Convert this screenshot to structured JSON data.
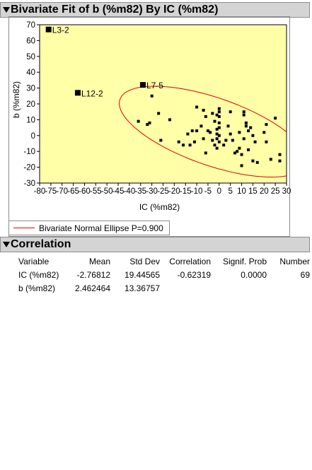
{
  "bivariate_panel": {
    "title": "Bivariate Fit of b (%m82) By IC (%m82)"
  },
  "legend": {
    "label": "Bivariate Normal Ellipse P=0.900",
    "color": "#e00000"
  },
  "correlation_panel": {
    "title": "Correlation",
    "headers": [
      "Variable",
      "Mean",
      "Std Dev",
      "Correlation",
      "Signif. Prob",
      "Number"
    ],
    "rows": [
      [
        "IC (%m82)",
        "-2.76812",
        "19.44565",
        "-0.62319",
        "0.0000",
        "69"
      ],
      [
        "b (%m82)",
        "2.462464",
        "13.36757",
        "",
        "",
        ""
      ]
    ]
  },
  "colors": {
    "plot_background": "#ffffa8",
    "header_background": "#d4d4d4",
    "ellipse": "#e00000",
    "marker": "#000000"
  },
  "chart_data": {
    "type": "scatter",
    "xlabel": "IC (%m82)",
    "ylabel": "b (%m82)",
    "xlim": [
      -80,
      30
    ],
    "ylim": [
      -30,
      70
    ],
    "xticks": [
      -80,
      -75,
      -70,
      -65,
      -60,
      -55,
      -50,
      -45,
      -40,
      -35,
      -30,
      -25,
      -20,
      -15,
      -10,
      -5,
      0,
      5,
      10,
      15,
      20,
      25,
      30
    ],
    "yticks": [
      -30,
      -20,
      -10,
      0,
      10,
      20,
      30,
      40,
      50,
      60,
      70
    ],
    "tick_labels_x": [
      "-80",
      "-75",
      "-70",
      "-65",
      "-60",
      "-55",
      "-50",
      "-45",
      "-40",
      "-35",
      "-30",
      "-25",
      "-20",
      "-15",
      "-10",
      "-5",
      "0",
      "5",
      "10",
      "15",
      "20",
      "25",
      "30"
    ],
    "tick_labels_y": [
      "-30",
      "-20",
      "-10",
      "0",
      "10",
      "20",
      "30",
      "40",
      "50",
      "60",
      "70"
    ],
    "grid": false,
    "labeled_points": [
      {
        "label": "L3-2",
        "x": -76,
        "y": 67
      },
      {
        "label": "L12-2",
        "x": -63,
        "y": 27
      },
      {
        "label": "L7-5",
        "x": -34,
        "y": 32
      }
    ],
    "points": [
      [
        -36,
        9
      ],
      [
        -32,
        7
      ],
      [
        -31,
        8
      ],
      [
        -30,
        25
      ],
      [
        -27,
        14
      ],
      [
        -26,
        -3
      ],
      [
        -22,
        10
      ],
      [
        -18,
        -4
      ],
      [
        -16,
        -6
      ],
      [
        -14,
        1
      ],
      [
        -13,
        -6
      ],
      [
        -12,
        3
      ],
      [
        -11,
        -4
      ],
      [
        -10,
        18
      ],
      [
        -10,
        3
      ],
      [
        -8,
        6
      ],
      [
        -7,
        -2
      ],
      [
        -7,
        16
      ],
      [
        -6,
        12
      ],
      [
        -6,
        -11
      ],
      [
        -5,
        3
      ],
      [
        -4,
        2
      ],
      [
        -3,
        -3
      ],
      [
        -3,
        14
      ],
      [
        -2,
        -6
      ],
      [
        -2,
        9
      ],
      [
        -1,
        4
      ],
      [
        -1,
        1
      ],
      [
        -1,
        -2
      ],
      [
        -1,
        -8
      ],
      [
        -1,
        13
      ],
      [
        0,
        17
      ],
      [
        0,
        15
      ],
      [
        0,
        12
      ],
      [
        0,
        8
      ],
      [
        0,
        5
      ],
      [
        0,
        0
      ],
      [
        0,
        -4
      ],
      [
        2,
        -6
      ],
      [
        3,
        -3
      ],
      [
        4,
        6
      ],
      [
        5,
        15
      ],
      [
        5,
        1
      ],
      [
        6,
        -3
      ],
      [
        7,
        -11
      ],
      [
        8,
        -10
      ],
      [
        9,
        2
      ],
      [
        9,
        -8
      ],
      [
        10,
        -12
      ],
      [
        10,
        -19
      ],
      [
        11,
        15
      ],
      [
        11,
        13
      ],
      [
        11,
        -2
      ],
      [
        12,
        8
      ],
      [
        12,
        6
      ],
      [
        13,
        3
      ],
      [
        13,
        -9
      ],
      [
        14,
        5
      ],
      [
        15,
        0
      ],
      [
        15,
        -16
      ],
      [
        16,
        -4
      ],
      [
        17,
        -17
      ],
      [
        20,
        2
      ],
      [
        21,
        -4
      ],
      [
        21,
        7
      ],
      [
        23,
        -15
      ],
      [
        25,
        11
      ],
      [
        27,
        -12
      ],
      [
        27,
        -16
      ]
    ],
    "ellipse": {
      "probability": 0.9,
      "mean_x": -2.76812,
      "mean_y": 2.462464,
      "sd_x": 19.44565,
      "sd_y": 13.36757,
      "r": -0.62319
    }
  }
}
